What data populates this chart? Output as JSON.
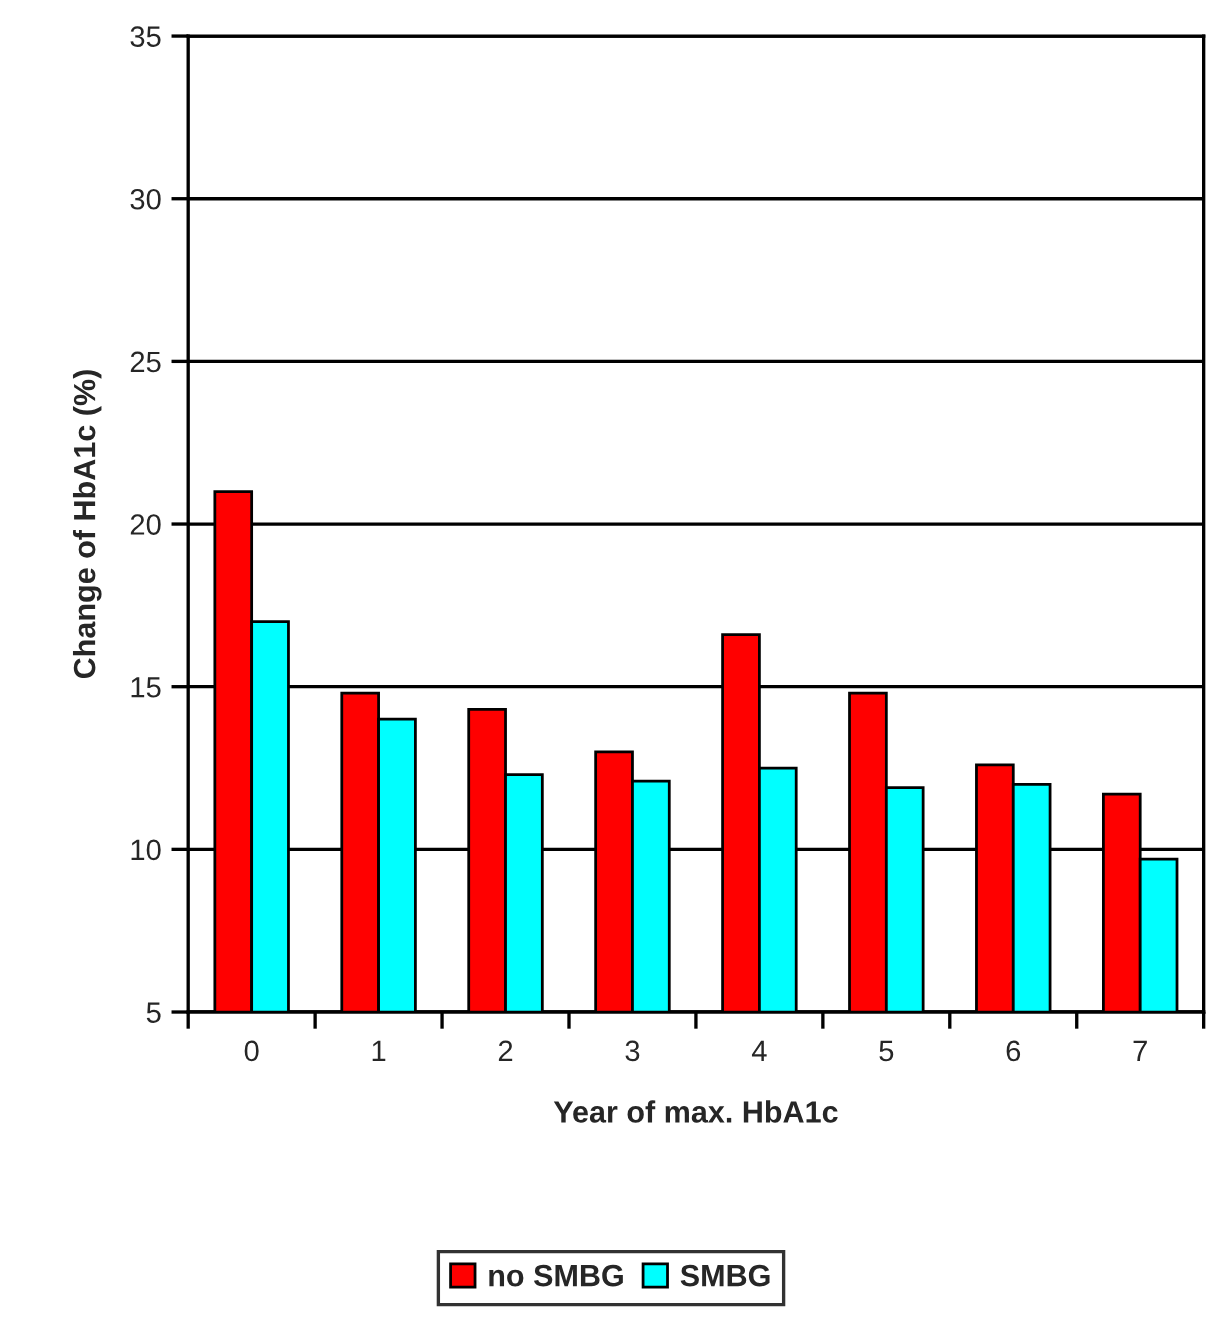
{
  "chart_data": {
    "type": "bar",
    "xlabel": "Year of max. HbA1c",
    "ylabel": "Change of HbA1c (%)",
    "categories": [
      "0",
      "1",
      "2",
      "3",
      "4",
      "5",
      "6",
      "7"
    ],
    "series": [
      {
        "name": "no SMBG",
        "color": "#ff0000",
        "values": [
          21.0,
          14.8,
          14.3,
          13.0,
          16.6,
          14.8,
          12.6,
          11.7
        ]
      },
      {
        "name": "SMBG",
        "color": "#00ffff",
        "values": [
          17.0,
          14.0,
          12.3,
          12.1,
          12.5,
          11.9,
          12.0,
          9.7
        ]
      }
    ],
    "ylim": [
      5,
      35
    ],
    "yticks": [
      5,
      10,
      15,
      20,
      25,
      30,
      35
    ],
    "grid": "y",
    "legend": "bottom"
  }
}
